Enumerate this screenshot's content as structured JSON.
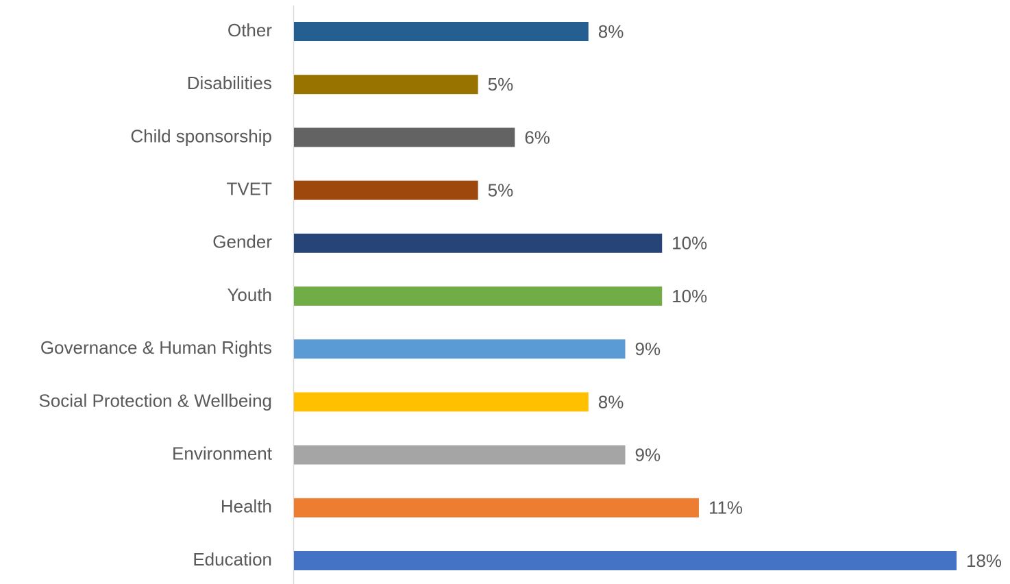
{
  "chart_data": {
    "type": "barh",
    "categories": [
      "Other",
      "Disabilities",
      "Child sponsorship",
      "TVET",
      "Gender",
      "Youth",
      "Governance & Human Rights",
      "Social Protection & Wellbeing",
      "Environment",
      "Health",
      "Education"
    ],
    "values": [
      8,
      5,
      6,
      5,
      10,
      10,
      9,
      8,
      9,
      11,
      18
    ],
    "value_labels": [
      "8%",
      "5%",
      "6%",
      "5%",
      "10%",
      "10%",
      "9%",
      "8%",
      "9%",
      "11%",
      "18%"
    ],
    "colors": [
      "#255e91",
      "#997300",
      "#636363",
      "#9e480e",
      "#264478",
      "#70ad47",
      "#5b9bd5",
      "#ffc000",
      "#a5a5a5",
      "#ed7d31",
      "#4472c4"
    ]
  }
}
